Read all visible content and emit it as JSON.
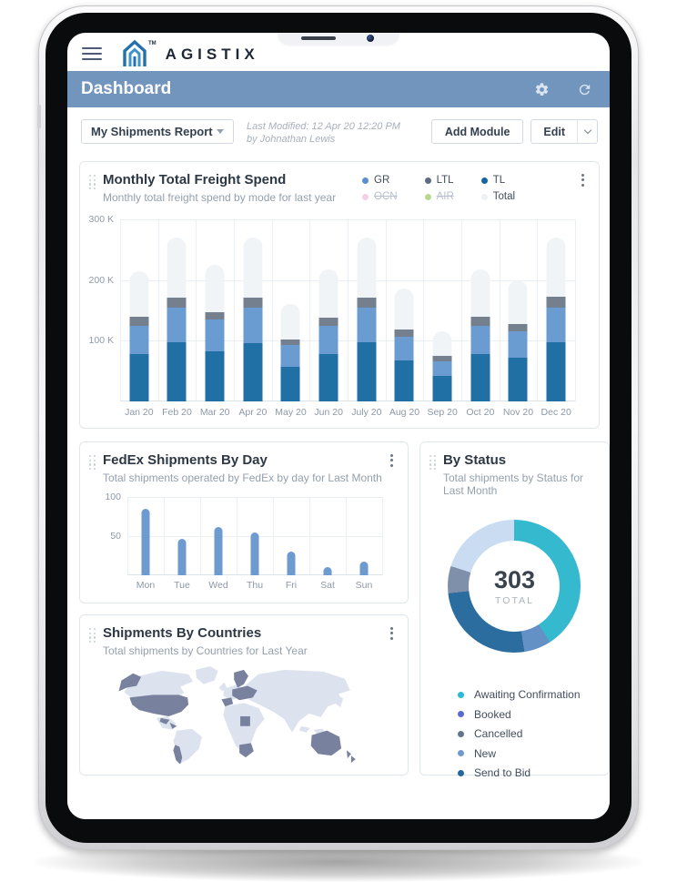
{
  "header": {
    "logo_text": "AGISTIX",
    "logo_tm": "TM"
  },
  "titlebar": {
    "title": "Dashboard"
  },
  "toolbar": {
    "report_selector_value": "My Shipments Report",
    "last_modified_line1": "Last Modified: 12 Apr 20 12:20 PM",
    "last_modified_line2": "by Johnathan Lewis",
    "add_module_label": "Add Module",
    "edit_label": "Edit"
  },
  "theme": {
    "titlebar_blue": "#7295bd",
    "card_border": "#e2e7ec",
    "map_land": "#dde3ee",
    "map_highlight": "#78829e"
  },
  "chart_data": [
    {
      "id": "monthly_freight",
      "type": "bar",
      "stacked": true,
      "title": "Monthly Total Freight Spend",
      "subtitle": "Monthly total freight spend by mode for last year",
      "categories": [
        "Jan 20",
        "Feb 20",
        "Mar 20",
        "Apr 20",
        "May 20",
        "Jun 20",
        "July 20",
        "Aug 20",
        "Sep 20",
        "Oct 20",
        "Nov 20",
        "Dec 20"
      ],
      "ylim": [
        0,
        300
      ],
      "y_ticks": [
        {
          "label": "300 K",
          "value": 300
        },
        {
          "label": "200 K",
          "value": 200
        },
        {
          "label": "100 K",
          "value": 100
        }
      ],
      "series": [
        {
          "name": "TL",
          "color": "#2170a5",
          "values": [
            78,
            97,
            82,
            96,
            57,
            78,
            97,
            67,
            42,
            78,
            72,
            97
          ]
        },
        {
          "name": "GR",
          "color": "#6a9bd1",
          "values": [
            46,
            57,
            53,
            58,
            36,
            46,
            57,
            40,
            24,
            47,
            43,
            58
          ]
        },
        {
          "name": "LTL",
          "color": "#75808f",
          "values": [
            15,
            17,
            12,
            17,
            9,
            14,
            17,
            11,
            9,
            14,
            13,
            17
          ]
        }
      ],
      "background_series": {
        "name": "Total",
        "color": "#f0f4f7",
        "values": [
          215,
          270,
          225,
          270,
          160,
          217,
          270,
          186,
          115,
          217,
          199,
          270
        ]
      },
      "legend": [
        {
          "label": "GR",
          "color": "#5b8fd0",
          "disabled": false
        },
        {
          "label": "LTL",
          "color": "#5d6b85",
          "disabled": false
        },
        {
          "label": "TL",
          "color": "#1465a0",
          "disabled": false
        },
        {
          "label": "OCN",
          "color": "#f4cfe5",
          "disabled": true
        },
        {
          "label": "AIR",
          "color": "#b8d98d",
          "disabled": true
        },
        {
          "label": "Total",
          "color": "#eef1f4",
          "disabled": false
        }
      ]
    },
    {
      "id": "fedex_by_day",
      "type": "bar",
      "title": "FedEx Shipments By Day",
      "subtitle": "Total shipments operated by FedEx by day for Last Month",
      "categories": [
        "Mon",
        "Tue",
        "Wed",
        "Thu",
        "Fri",
        "Sat",
        "Sun"
      ],
      "values": [
        85,
        47,
        62,
        55,
        30,
        10,
        17
      ],
      "ylim": [
        0,
        100
      ],
      "y_ticks": [
        {
          "label": "100",
          "value": 100
        },
        {
          "label": "50",
          "value": 50
        }
      ],
      "bar_color": "#6d9bd0"
    },
    {
      "id": "by_status",
      "type": "donut",
      "title": "By Status",
      "subtitle": "Total shipments by Status for Last Month",
      "center_value": "303",
      "center_label": "TOTAL",
      "segments": [
        {
          "label": "Awaiting Confirmation",
          "value": 124,
          "color": "#35b9ce"
        },
        {
          "label": "New",
          "value": 20,
          "color": "#6390c5"
        },
        {
          "label": "Send to Bid",
          "value": 78,
          "color": "#2a6d9e"
        },
        {
          "label": "Cancelled",
          "value": 20,
          "color": "#7f90aa"
        },
        {
          "label": "Booked",
          "value": 61,
          "color": "#cadcf2"
        }
      ],
      "legend": [
        {
          "label": "Awaiting Confirmation",
          "color": "#29bcd2"
        },
        {
          "label": "Booked",
          "color": "#5a68d6"
        },
        {
          "label": "Cancelled",
          "color": "#64748b"
        },
        {
          "label": "New",
          "color": "#6f9ad0"
        },
        {
          "label": "Send to Bid",
          "color": "#22689f"
        }
      ]
    },
    {
      "id": "shipments_by_countries",
      "type": "map",
      "title": "Shipments By Countries",
      "subtitle": "Total shipments by Countries for Last Year",
      "highlighted_regions": [
        "Alaska",
        "United States",
        "Central America",
        "Chile",
        "Scandinavia",
        "Central Europe",
        "Spain",
        "Chad",
        "South Africa",
        "Australia",
        "New Zealand"
      ]
    }
  ]
}
